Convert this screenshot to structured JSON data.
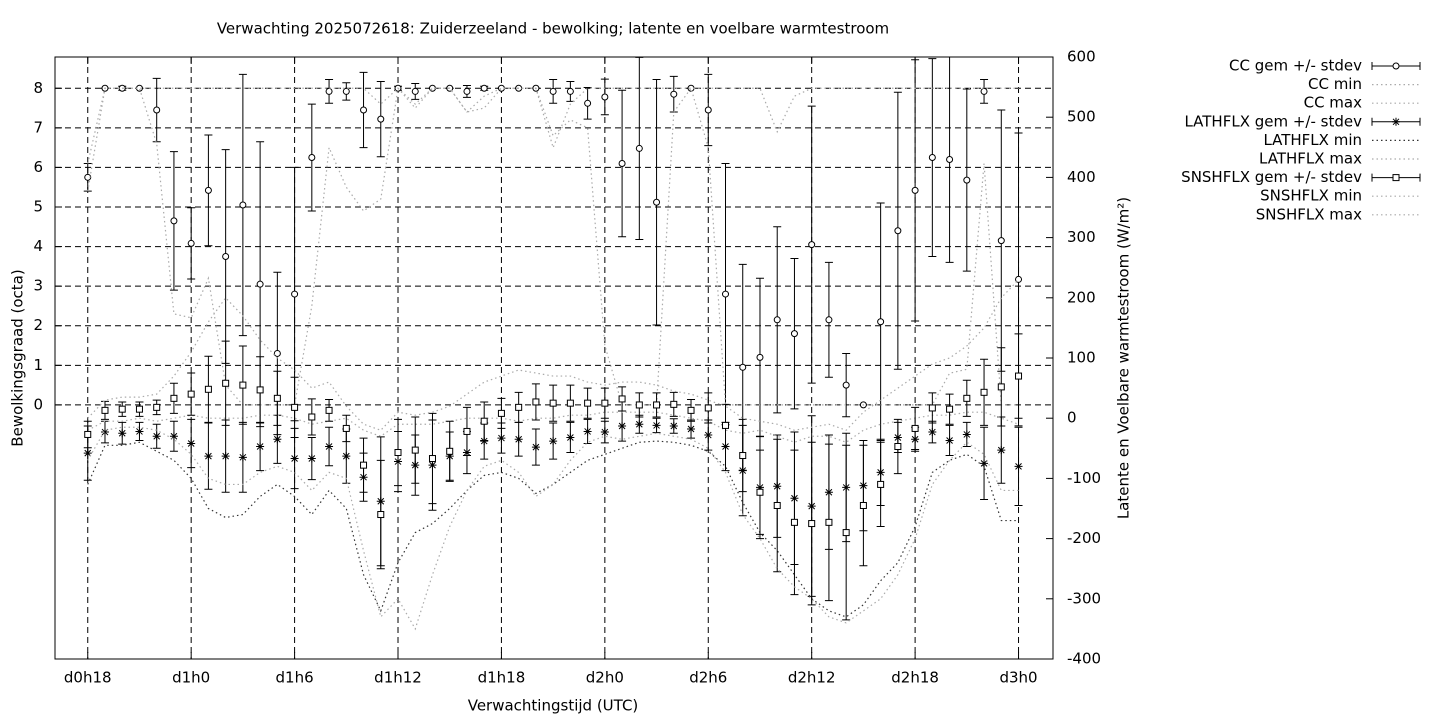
{
  "chart_data": {
    "type": "errorbar",
    "title": "Verwachting 2025072618: Zuiderzeeland - bewolking; latente en voelbare warmtestroom",
    "xlabel": "Verwachtingstijd (UTC)",
    "ylabel": "Bewolkingsgraad (octa)",
    "y2label": "Latente en Voelbare warmtestroom (W/m²)",
    "x": [
      18,
      19,
      20,
      21,
      22,
      23,
      24,
      25,
      26,
      27,
      28,
      29,
      30,
      31,
      32,
      33,
      34,
      35,
      36,
      37,
      38,
      39,
      40,
      41,
      42,
      43,
      44,
      45,
      46,
      47,
      48,
      49,
      50,
      51,
      52,
      53,
      54,
      55,
      56,
      57,
      58,
      59,
      60,
      61,
      62,
      63,
      64,
      65,
      66,
      67,
      68,
      69,
      70,
      71,
      72
    ],
    "xlim": [
      16.1,
      74
    ],
    "xticks": [
      {
        "value": 18,
        "label": "d0h18"
      },
      {
        "value": 24,
        "label": "d1h0"
      },
      {
        "value": 30,
        "label": "d1h6"
      },
      {
        "value": 36,
        "label": "d1h12"
      },
      {
        "value": 42,
        "label": "d1h18"
      },
      {
        "value": 48,
        "label": "d2h0"
      },
      {
        "value": 54,
        "label": "d2h6"
      },
      {
        "value": 60,
        "label": "d2h12"
      },
      {
        "value": 66,
        "label": "d2h18"
      },
      {
        "value": 72,
        "label": "d3h0"
      }
    ],
    "ylim": [
      -6.42,
      8.79
    ],
    "yticks": [
      0,
      1,
      2,
      3,
      4,
      5,
      6,
      7,
      8
    ],
    "y2lim": [
      -400,
      600
    ],
    "y2ticks": [
      -400,
      -300,
      -200,
      -100,
      0,
      100,
      200,
      300,
      400,
      500,
      600
    ],
    "grid": true,
    "legend": "outside-top-right",
    "series": [
      {
        "name": "CC gem +/- stdev",
        "color": "#000000",
        "marker": "circle",
        "axis": "y",
        "values": [
          5.75,
          8,
          8,
          8,
          7.45,
          4.65,
          4.08,
          5.42,
          3.75,
          5.05,
          3.05,
          1.3,
          2.8,
          6.25,
          7.92,
          7.92,
          7.45,
          7.22,
          8,
          7.92,
          8,
          8,
          7.92,
          8,
          8,
          8,
          8,
          7.92,
          7.92,
          7.62,
          7.78,
          6.1,
          6.48,
          5.12,
          7.85,
          8,
          7.45,
          2.8,
          0.95,
          1.2,
          2.15,
          1.8,
          4.05,
          2.15,
          0.5,
          0,
          2.1,
          4.4,
          5.42,
          6.25,
          6.2,
          5.68,
          7.92,
          4.15,
          3.17
        ],
        "errors": [
          0.35,
          0,
          0.05,
          0,
          0.8,
          1.75,
          0.9,
          1.4,
          2.7,
          3.3,
          3.6,
          2.05,
          3.2,
          1.35,
          0.3,
          0.22,
          0.95,
          0.95,
          0.05,
          0.2,
          0,
          0,
          0.15,
          0.05,
          0,
          0,
          0,
          0.3,
          0.25,
          0.4,
          0.45,
          1.85,
          2.3,
          3.1,
          0.45,
          0,
          0.9,
          3.3,
          2.6,
          2.0,
          2.35,
          1.9,
          3.5,
          1.45,
          0.8,
          0,
          3.0,
          3.5,
          3.3,
          2.5,
          2.6,
          2.3,
          0.3,
          3.3,
          3.7
        ]
      },
      {
        "name": "CC min",
        "color": "#aaaaaa",
        "axis": "y",
        "values": [
          5.4,
          8,
          8,
          8,
          6.6,
          2.3,
          2.2,
          3.2,
          0.5,
          0,
          0,
          0,
          0,
          2.5,
          6.5,
          5.5,
          4.9,
          5.2,
          8,
          7.6,
          8,
          8,
          7.4,
          7.5,
          8,
          8,
          8,
          6.8,
          7.2,
          7,
          1.5,
          0,
          0,
          0,
          7.4,
          8,
          6.5,
          0,
          0,
          0,
          0,
          0,
          0,
          0,
          0,
          0,
          0,
          0,
          0,
          0,
          0.8,
          0.9,
          6.1,
          0,
          0
        ]
      },
      {
        "name": "CC max",
        "color": "#aaaaaa",
        "axis": "y",
        "values": [
          6.1,
          8,
          8,
          8,
          8,
          8,
          8,
          8,
          8,
          8,
          8,
          8,
          8,
          8,
          8,
          8,
          8,
          7.6,
          8,
          7.5,
          8,
          8,
          7.4,
          7.8,
          8,
          8,
          8,
          6.5,
          7.6,
          8,
          8,
          8,
          8,
          8,
          8,
          8,
          8,
          8,
          8,
          8,
          6.9,
          7.8,
          8,
          8,
          8,
          8,
          8,
          8,
          8,
          8,
          8,
          8,
          8,
          8,
          8
        ]
      },
      {
        "name": "LATHFLX gem +/- stdev",
        "color": "#000000",
        "marker": "asterisk",
        "axis": "y2",
        "values": [
          -58,
          -23,
          -25,
          -22,
          -30,
          -30,
          -42,
          -63,
          -63,
          -65,
          -47,
          -35,
          -67,
          -67,
          -47,
          -63,
          -98,
          -138,
          -72,
          -78,
          -78,
          -63,
          -57,
          -38,
          -33,
          -35,
          -48,
          -38,
          -32,
          -22,
          -23,
          -13,
          -10,
          -12,
          -13,
          -18,
          -28,
          -47,
          -87,
          -115,
          -113,
          -133,
          -146,
          -123,
          -115,
          -112,
          -90,
          -32,
          -35,
          -23,
          -37,
          -27,
          -75,
          -53,
          -80
        ],
        "errors": [
          45,
          18,
          18,
          15,
          20,
          25,
          40,
          55,
          60,
          58,
          40,
          40,
          50,
          35,
          32,
          45,
          40,
          107,
          50,
          50,
          75,
          40,
          35,
          30,
          25,
          28,
          30,
          30,
          25,
          20,
          18,
          25,
          15,
          12,
          12,
          15,
          25,
          40,
          75,
          85,
          85,
          110,
          150,
          95,
          90,
          75,
          55,
          25,
          20,
          18,
          25,
          20,
          60,
          55,
          65
        ]
      },
      {
        "name": "LATHFLX min",
        "color": "#333333",
        "axis": "y2",
        "values": [
          -110,
          -45,
          -45,
          -40,
          -55,
          -70,
          -100,
          -150,
          -165,
          -160,
          -130,
          -110,
          -130,
          -160,
          -120,
          -150,
          -260,
          -320,
          -240,
          -190,
          -175,
          -150,
          -120,
          -95,
          -90,
          -100,
          -125,
          -110,
          -90,
          -70,
          -60,
          -50,
          -40,
          -38,
          -40,
          -45,
          -55,
          -80,
          -140,
          -190,
          -220,
          -260,
          -300,
          -320,
          -330,
          -310,
          -270,
          -240,
          -180,
          -90,
          -70,
          -60,
          -80,
          -170,
          -170
        ]
      },
      {
        "name": "LATHFLX max",
        "color": "#aaaaaa",
        "axis": "y2",
        "values": [
          -20,
          -5,
          -5,
          0,
          -5,
          0,
          5,
          0,
          0,
          0,
          5,
          5,
          0,
          -10,
          -5,
          0,
          -20,
          -30,
          -10,
          -10,
          -10,
          -5,
          0,
          0,
          0,
          -5,
          0,
          0,
          5,
          5,
          10,
          10,
          10,
          10,
          5,
          0,
          -5,
          -20,
          -25,
          -20,
          -30,
          -40,
          -30,
          -30,
          -40,
          -20,
          -10,
          -5,
          0,
          5,
          5,
          10,
          10,
          0,
          -10
        ]
      },
      {
        "name": "SNSHFLX gem +/- stdev",
        "color": "#000000",
        "marker": "square",
        "axis": "y2",
        "values": [
          -27,
          13,
          15,
          15,
          18,
          33,
          40,
          48,
          58,
          55,
          47,
          33,
          18,
          2,
          13,
          -17,
          -78,
          -160,
          -57,
          -53,
          -67,
          -55,
          -22,
          -5,
          8,
          18,
          27,
          25,
          25,
          25,
          25,
          32,
          22,
          22,
          23,
          13,
          17,
          -12,
          -62,
          -123,
          -145,
          -173,
          -175,
          -173,
          -190,
          -145,
          -110,
          -47,
          -17,
          17,
          15,
          33,
          43,
          52,
          70
        ],
        "errors": [
          22,
          15,
          12,
          12,
          12,
          25,
          35,
          55,
          70,
          65,
          55,
          45,
          50,
          30,
          18,
          22,
          45,
          90,
          55,
          55,
          75,
          50,
          40,
          32,
          25,
          25,
          30,
          30,
          30,
          25,
          25,
          20,
          20,
          20,
          20,
          18,
          25,
          35,
          60,
          70,
          110,
          120,
          135,
          130,
          145,
          100,
          70,
          45,
          35,
          25,
          25,
          30,
          55,
          65,
          70
        ]
      },
      {
        "name": "SNSHFLX min",
        "color": "#aaaaaa",
        "axis": "y2",
        "values": [
          -70,
          -20,
          -15,
          -15,
          -20,
          -35,
          -60,
          -100,
          -110,
          -110,
          -90,
          -80,
          -90,
          -120,
          -90,
          -100,
          -220,
          -330,
          -300,
          -350,
          -260,
          -180,
          -120,
          -80,
          -70,
          -90,
          -130,
          -110,
          -70,
          -40,
          -30,
          -35,
          -30,
          -25,
          -30,
          -35,
          -50,
          -90,
          -160,
          -200,
          -250,
          -280,
          -300,
          -330,
          -340,
          -320,
          -300,
          -260,
          -200,
          -110,
          -70,
          -40,
          -60,
          -120,
          -120
        ]
      },
      {
        "name": "SNSHFLX max",
        "color": "#aaaaaa",
        "axis": "y2",
        "values": [
          0,
          30,
          35,
          35,
          40,
          70,
          110,
          160,
          200,
          170,
          130,
          100,
          80,
          50,
          60,
          20,
          -10,
          -20,
          10,
          5,
          10,
          20,
          40,
          60,
          70,
          80,
          75,
          70,
          70,
          60,
          55,
          60,
          60,
          55,
          45,
          40,
          30,
          20,
          0,
          -5,
          -10,
          -20,
          -15,
          -10,
          -20,
          10,
          30,
          50,
          70,
          90,
          100,
          120,
          150,
          200,
          230
        ]
      }
    ]
  }
}
